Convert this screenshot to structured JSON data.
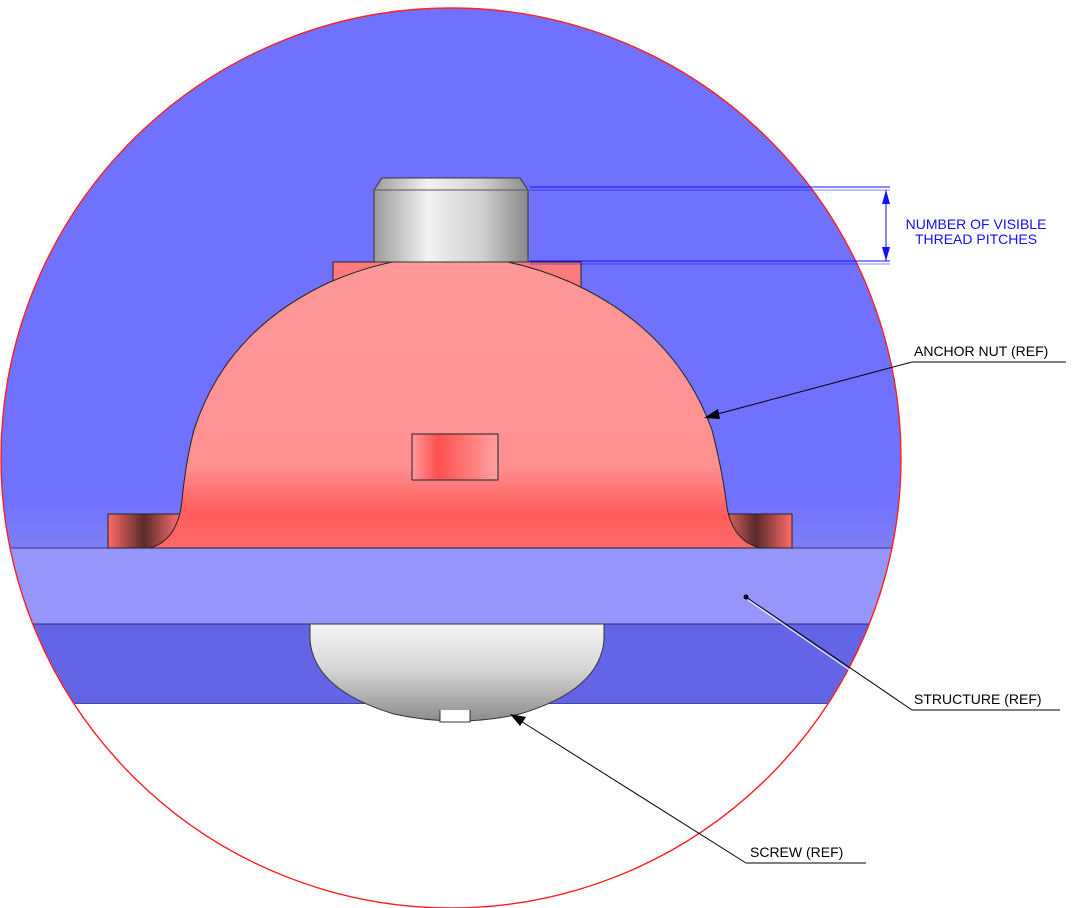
{
  "labels": {
    "dimension_line1": "NUMBER OF VISIBLE",
    "dimension_line2": "THREAD PITCHES",
    "anchor_nut": "ANCHOR NUT (REF)",
    "structure": "STRUCTURE (REF)",
    "screw": "SCREW (REF)"
  },
  "colors": {
    "background_fill": "#7171ff",
    "circle_outline": "#ff2020",
    "structure_fill": "#9595fc",
    "lower_band_fill": "#6464e6",
    "nut_fill": "#ff9393",
    "nut_shadow": "#ff5a5a",
    "screw_fill": "#d6d6d6",
    "dimension_color": "#1010ff",
    "leader_color": "#000000"
  }
}
